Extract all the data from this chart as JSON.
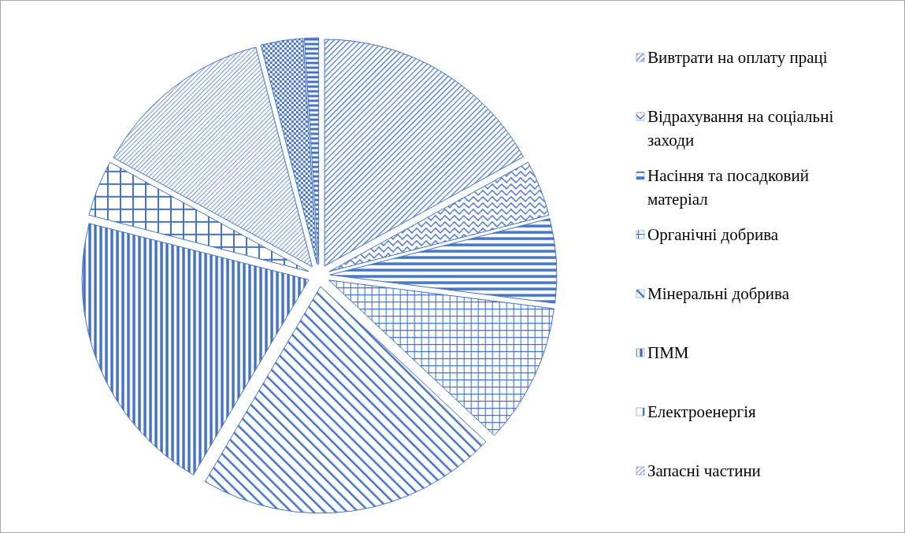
{
  "chart_data": {
    "type": "pie",
    "categories": [
      "Вивтрати на оплату праці",
      "Відрахування на соціальні заходи",
      "Насіння та посадковий матеріал",
      "Органічні добрива",
      "Мінеральні добрива",
      "ПММ",
      "Електроенергія",
      "Запасні частини",
      null,
      null
    ],
    "values": [
      17,
      4,
      6,
      10,
      21.5,
      20.5,
      4,
      13,
      3,
      1
    ],
    "colors": [
      "#4472c4",
      "#4472c4",
      "#4472c4",
      "#4472c4",
      "#4472c4",
      "#4472c4",
      "#4472c4",
      "#4472c4",
      "#4472c4",
      "#4472c4"
    ],
    "legend": "right"
  }
}
